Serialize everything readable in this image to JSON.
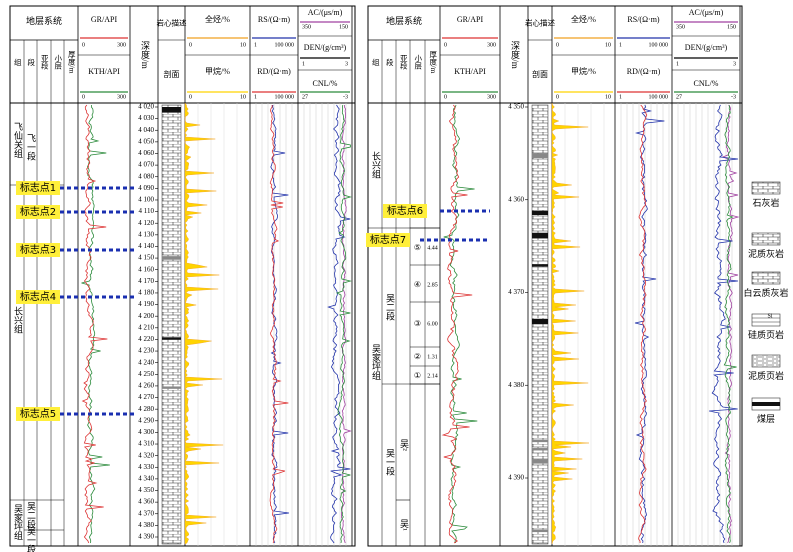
{
  "panels": [
    {
      "strat_title": "地层系统",
      "strat_cols": [
        "组",
        "段",
        "亚段",
        "小层",
        "厚度/m"
      ],
      "gr": {
        "name": "GR/API",
        "min": "0",
        "max": "300"
      },
      "kth": {
        "name": "KTH/API",
        "min": "0",
        "max": "300"
      },
      "depth_title": "深度/m",
      "core_title": "岩心描述",
      "section_title": "剖面",
      "tg": {
        "name": "全烃/%",
        "min": "0",
        "max": "10"
      },
      "ch4": {
        "name": "甲烷/%",
        "min": "0",
        "max": "10"
      },
      "rs": {
        "name": "RS/(Ω·m)",
        "min": "1",
        "max": "100 000"
      },
      "rd": {
        "name": "RD/(Ω·m)",
        "min": "1",
        "max": "100 000"
      },
      "ac": {
        "name": "AC/(μs/m)",
        "min": "350",
        "max": "150"
      },
      "den": {
        "name": "DEN/(g/cm³)",
        "min": "1",
        "max": "3"
      },
      "cnl": {
        "name": "CNL/%",
        "min": "27",
        "max": "-3"
      },
      "units": [
        "飞仙关组",
        "飞一段",
        "长兴组",
        "吴家坪组",
        "吴二段",
        "吴一段"
      ],
      "layers": [],
      "thickness": [],
      "markers": [
        "标志点1",
        "标志点2",
        "标志点3",
        "标志点4",
        "标志点5"
      ],
      "depth_ticks": [
        {
          "value": 4020,
          "label": "4 020"
        },
        {
          "value": 4030,
          "label": "4 030"
        },
        {
          "value": 4040,
          "label": "4 040"
        },
        {
          "value": 4050,
          "label": "4 050"
        },
        {
          "value": 4060,
          "label": "4 060"
        },
        {
          "value": 4070,
          "label": "4 070"
        },
        {
          "value": 4080,
          "label": "4 080"
        },
        {
          "value": 4090,
          "label": "4 090"
        },
        {
          "value": 4100,
          "label": "4 100"
        },
        {
          "value": 4110,
          "label": "4 110"
        },
        {
          "value": 4120,
          "label": "4 120"
        },
        {
          "value": 4130,
          "label": "4 130"
        },
        {
          "value": 4140,
          "label": "4 140"
        },
        {
          "value": 4150,
          "label": "4 150"
        },
        {
          "value": 4160,
          "label": "4 160"
        },
        {
          "value": 4170,
          "label": "4 170"
        },
        {
          "value": 4180,
          "label": "4 180"
        },
        {
          "value": 4190,
          "label": "4 190"
        },
        {
          "value": 4200,
          "label": "4 200"
        },
        {
          "value": 4210,
          "label": "4 210"
        },
        {
          "value": 4220,
          "label": "4 220"
        },
        {
          "value": 4230,
          "label": "4 230"
        },
        {
          "value": 4240,
          "label": "4 240"
        },
        {
          "value": 4250,
          "label": "4 250"
        },
        {
          "value": 4260,
          "label": "4 260"
        },
        {
          "value": 4270,
          "label": "4 270"
        },
        {
          "value": 4280,
          "label": "4 280"
        },
        {
          "value": 4290,
          "label": "4 290"
        },
        {
          "value": 4300,
          "label": "4 300"
        },
        {
          "value": 4310,
          "label": "4 310"
        },
        {
          "value": 4320,
          "label": "4 320"
        },
        {
          "value": 4330,
          "label": "4 330"
        },
        {
          "value": 4340,
          "label": "4 340"
        },
        {
          "value": 4350,
          "label": "4 350"
        },
        {
          "value": 4360,
          "label": "4 360"
        },
        {
          "value": 4370,
          "label": "4 370"
        },
        {
          "value": 4380,
          "label": "4 380"
        },
        {
          "value": 4390,
          "label": "4 390"
        }
      ]
    },
    {
      "strat_title": "地层系统",
      "strat_cols": [
        "组",
        "段",
        "亚段",
        "小层",
        "厚度/m"
      ],
      "gr": {
        "name": "GR/API",
        "min": "0",
        "max": "300"
      },
      "kth": {
        "name": "KTH/API",
        "min": "0",
        "max": "300"
      },
      "depth_title": "深度/m",
      "core_title": "岩心描述",
      "section_title": "剖面",
      "tg": {
        "name": "全烃/%",
        "min": "0",
        "max": "10"
      },
      "ch4": {
        "name": "甲烷/%",
        "min": "0",
        "max": "10"
      },
      "rs": {
        "name": "RS/(Ω·m)",
        "min": "1",
        "max": "100 000"
      },
      "rd": {
        "name": "RD/(Ω·m)",
        "min": "1",
        "max": "100 000"
      },
      "ac": {
        "name": "AC/(μs/m)",
        "min": "350",
        "max": "150"
      },
      "den": {
        "name": "DEN/(g/cm³)",
        "min": "1",
        "max": "3"
      },
      "cnl": {
        "name": "CNL/%",
        "min": "27",
        "max": "-3"
      },
      "units": [
        "长兴组",
        "吴家坪组",
        "吴二段",
        "吴一段",
        "吴²",
        "吴¹"
      ],
      "layers": [
        "⑤",
        "④",
        "③",
        "②",
        "①"
      ],
      "thickness": [
        "4.44",
        "2.85",
        "6.00",
        "1.31",
        "2.14"
      ],
      "markers": [
        "标志点6",
        "标志点7"
      ],
      "depth_ticks": [
        {
          "value": 4350,
          "label": "4 350"
        },
        {
          "value": 4360,
          "label": "4 360"
        },
        {
          "value": 4370,
          "label": "4 370"
        },
        {
          "value": 4380,
          "label": "4 380"
        },
        {
          "value": 4390,
          "label": "4 390"
        }
      ]
    }
  ],
  "legend": {
    "items": [
      "石灰岩",
      "泥质灰岩",
      "白云质灰岩",
      "硅质页岩",
      "泥质页岩",
      "煤层"
    ],
    "si": "Si"
  }
}
